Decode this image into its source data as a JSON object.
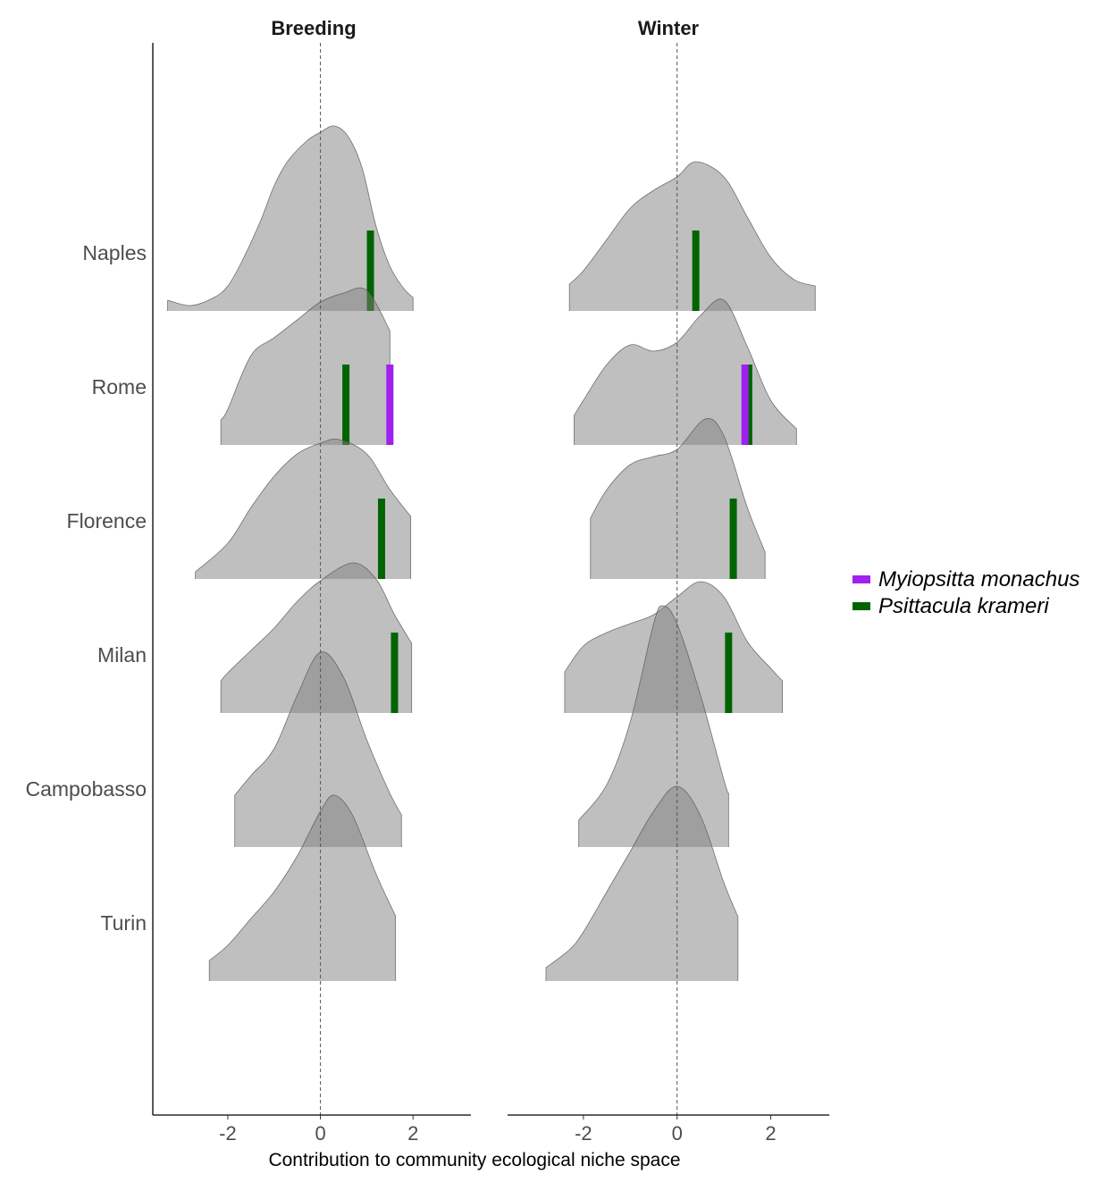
{
  "chart_data": {
    "type": "ridgeline",
    "xlabel": "Contribution to community ecological niche space",
    "ylabel": "",
    "xlim": [
      -3.62,
      3.25
    ],
    "x_ticks": [
      "-2",
      "0",
      "2"
    ],
    "x_tick_values": [
      -2,
      0,
      2
    ],
    "reference_line": {
      "x": 0,
      "style": "dashed"
    },
    "grid": false,
    "density_fill": "#808080",
    "density_fill_opacity": 0.5,
    "categories": [
      "Naples",
      "Rome",
      "Florence",
      "Milan",
      "Campobasso",
      "Turin"
    ],
    "legend": {
      "placement": "right",
      "entries": [
        {
          "name": "Myiopsitta monachus",
          "color": "#A020F0"
        },
        {
          "name": "Psittacula krameri",
          "color": "#006400"
        }
      ]
    },
    "panels": [
      {
        "title": "Breeding",
        "densities": {
          "Naples": {
            "x": [
              -3.3,
              -2.8,
              -2.3,
              -2,
              -1.7,
              -1.3,
              -1,
              -0.7,
              -0.3,
              0,
              0.3,
              0.6,
              0.9,
              1.2,
              1.5,
              1.8,
              2.0
            ],
            "density": [
              0.12,
              0.06,
              0.15,
              0.28,
              0.55,
              1.0,
              1.4,
              1.68,
              1.9,
              2.0,
              2.07,
              1.95,
              1.6,
              0.95,
              0.5,
              0.25,
              0.15
            ]
          },
          "Rome": {
            "x": [
              -2.15,
              -2,
              -1.5,
              -1,
              -0.5,
              0,
              0.5,
              1,
              1.5
            ],
            "density": [
              0.28,
              0.4,
              1.0,
              1.2,
              1.4,
              1.6,
              1.7,
              1.73,
              1.28
            ]
          },
          "Florence": {
            "x": [
              -2.7,
              -2,
              -1.5,
              -1,
              -0.5,
              0,
              0.4,
              1,
              1.5,
              1.95
            ],
            "density": [
              0.08,
              0.4,
              0.8,
              1.15,
              1.4,
              1.52,
              1.56,
              1.4,
              1.0,
              0.7
            ]
          },
          "Milan": {
            "x": [
              -2.15,
              -2,
              -1.5,
              -1,
              -0.5,
              0,
              0.7,
              1.2,
              1.6,
              1.97
            ],
            "density": [
              0.36,
              0.45,
              0.7,
              0.95,
              1.25,
              1.48,
              1.68,
              1.5,
              1.1,
              0.78
            ]
          },
          "Campobasso": {
            "x": [
              -1.85,
              -1.5,
              -1,
              -0.5,
              0,
              0.5,
              1,
              1.5,
              1.75
            ],
            "density": [
              0.58,
              0.8,
              1.1,
              1.7,
              2.18,
              1.9,
              1.2,
              0.6,
              0.36
            ]
          },
          "Turin": {
            "x": [
              -2.4,
              -2,
              -1.5,
              -1,
              -0.5,
              0,
              0.3,
              0.7,
              1.2,
              1.62
            ],
            "density": [
              0.23,
              0.4,
              0.7,
              1.0,
              1.4,
              1.9,
              2.08,
              1.85,
              1.2,
              0.73
            ]
          }
        },
        "species_values": [
          {
            "city": "Naples",
            "species": "Psittacula krameri",
            "x": 1.08
          },
          {
            "city": "Rome",
            "species": "Psittacula krameri",
            "x": 0.55
          },
          {
            "city": "Rome",
            "species": "Myiopsitta monachus",
            "x": 1.5
          },
          {
            "city": "Florence",
            "species": "Psittacula krameri",
            "x": 1.32
          },
          {
            "city": "Milan",
            "species": "Psittacula krameri",
            "x": 1.6
          }
        ]
      },
      {
        "title": "Winter",
        "densities": {
          "Naples": {
            "x": [
              -2.3,
              -2,
              -1.5,
              -1,
              -0.5,
              0,
              0.4,
              1,
              1.5,
              2,
              2.5,
              2.95
            ],
            "density": [
              0.3,
              0.45,
              0.8,
              1.15,
              1.35,
              1.5,
              1.67,
              1.5,
              1.05,
              0.6,
              0.35,
              0.28
            ]
          },
          "Rome": {
            "x": [
              -2.2,
              -2,
              -1.5,
              -1,
              -0.5,
              0,
              0.5,
              1,
              1.5,
              2,
              2.55
            ],
            "density": [
              0.33,
              0.5,
              0.9,
              1.12,
              1.05,
              1.15,
              1.45,
              1.62,
              1.1,
              0.5,
              0.18
            ]
          },
          "Florence": {
            "x": [
              -1.85,
              -1.5,
              -1,
              -0.5,
              0,
              0.6,
              1,
              1.5,
              1.88
            ],
            "density": [
              0.68,
              1.0,
              1.28,
              1.37,
              1.45,
              1.79,
              1.6,
              0.8,
              0.3
            ]
          },
          "Milan": {
            "x": [
              -2.4,
              -2,
              -1.5,
              -1,
              -0.5,
              0,
              0.5,
              1,
              1.5,
              2,
              2.25
            ],
            "density": [
              0.46,
              0.75,
              0.9,
              1.0,
              1.1,
              1.3,
              1.47,
              1.3,
              0.8,
              0.5,
              0.36
            ]
          },
          "Campobasso": {
            "x": [
              -2.1,
              -1.5,
              -1,
              -0.5,
              -0.3,
              0,
              0.5,
              1,
              1.1
            ],
            "density": [
              0.3,
              0.7,
              1.4,
              2.5,
              2.7,
              2.5,
              1.7,
              0.75,
              0.6
            ]
          },
          "Turin": {
            "x": [
              -2.8,
              -2.3,
              -2,
              -1.5,
              -1,
              -0.5,
              0,
              0.5,
              1,
              1.3
            ],
            "density": [
              0.15,
              0.35,
              0.55,
              1.0,
              1.45,
              1.9,
              2.18,
              1.85,
              1.1,
              0.72
            ]
          }
        },
        "species_values": [
          {
            "city": "Naples",
            "species": "Psittacula krameri",
            "x": 0.4
          },
          {
            "city": "Rome",
            "species": "Psittacula krameri",
            "x": 1.53
          },
          {
            "city": "Rome",
            "species": "Myiopsitta monachus",
            "x": 1.45
          },
          {
            "city": "Florence",
            "species": "Psittacula krameri",
            "x": 1.2
          },
          {
            "city": "Milan",
            "species": "Psittacula krameri",
            "x": 1.1
          }
        ]
      }
    ]
  }
}
